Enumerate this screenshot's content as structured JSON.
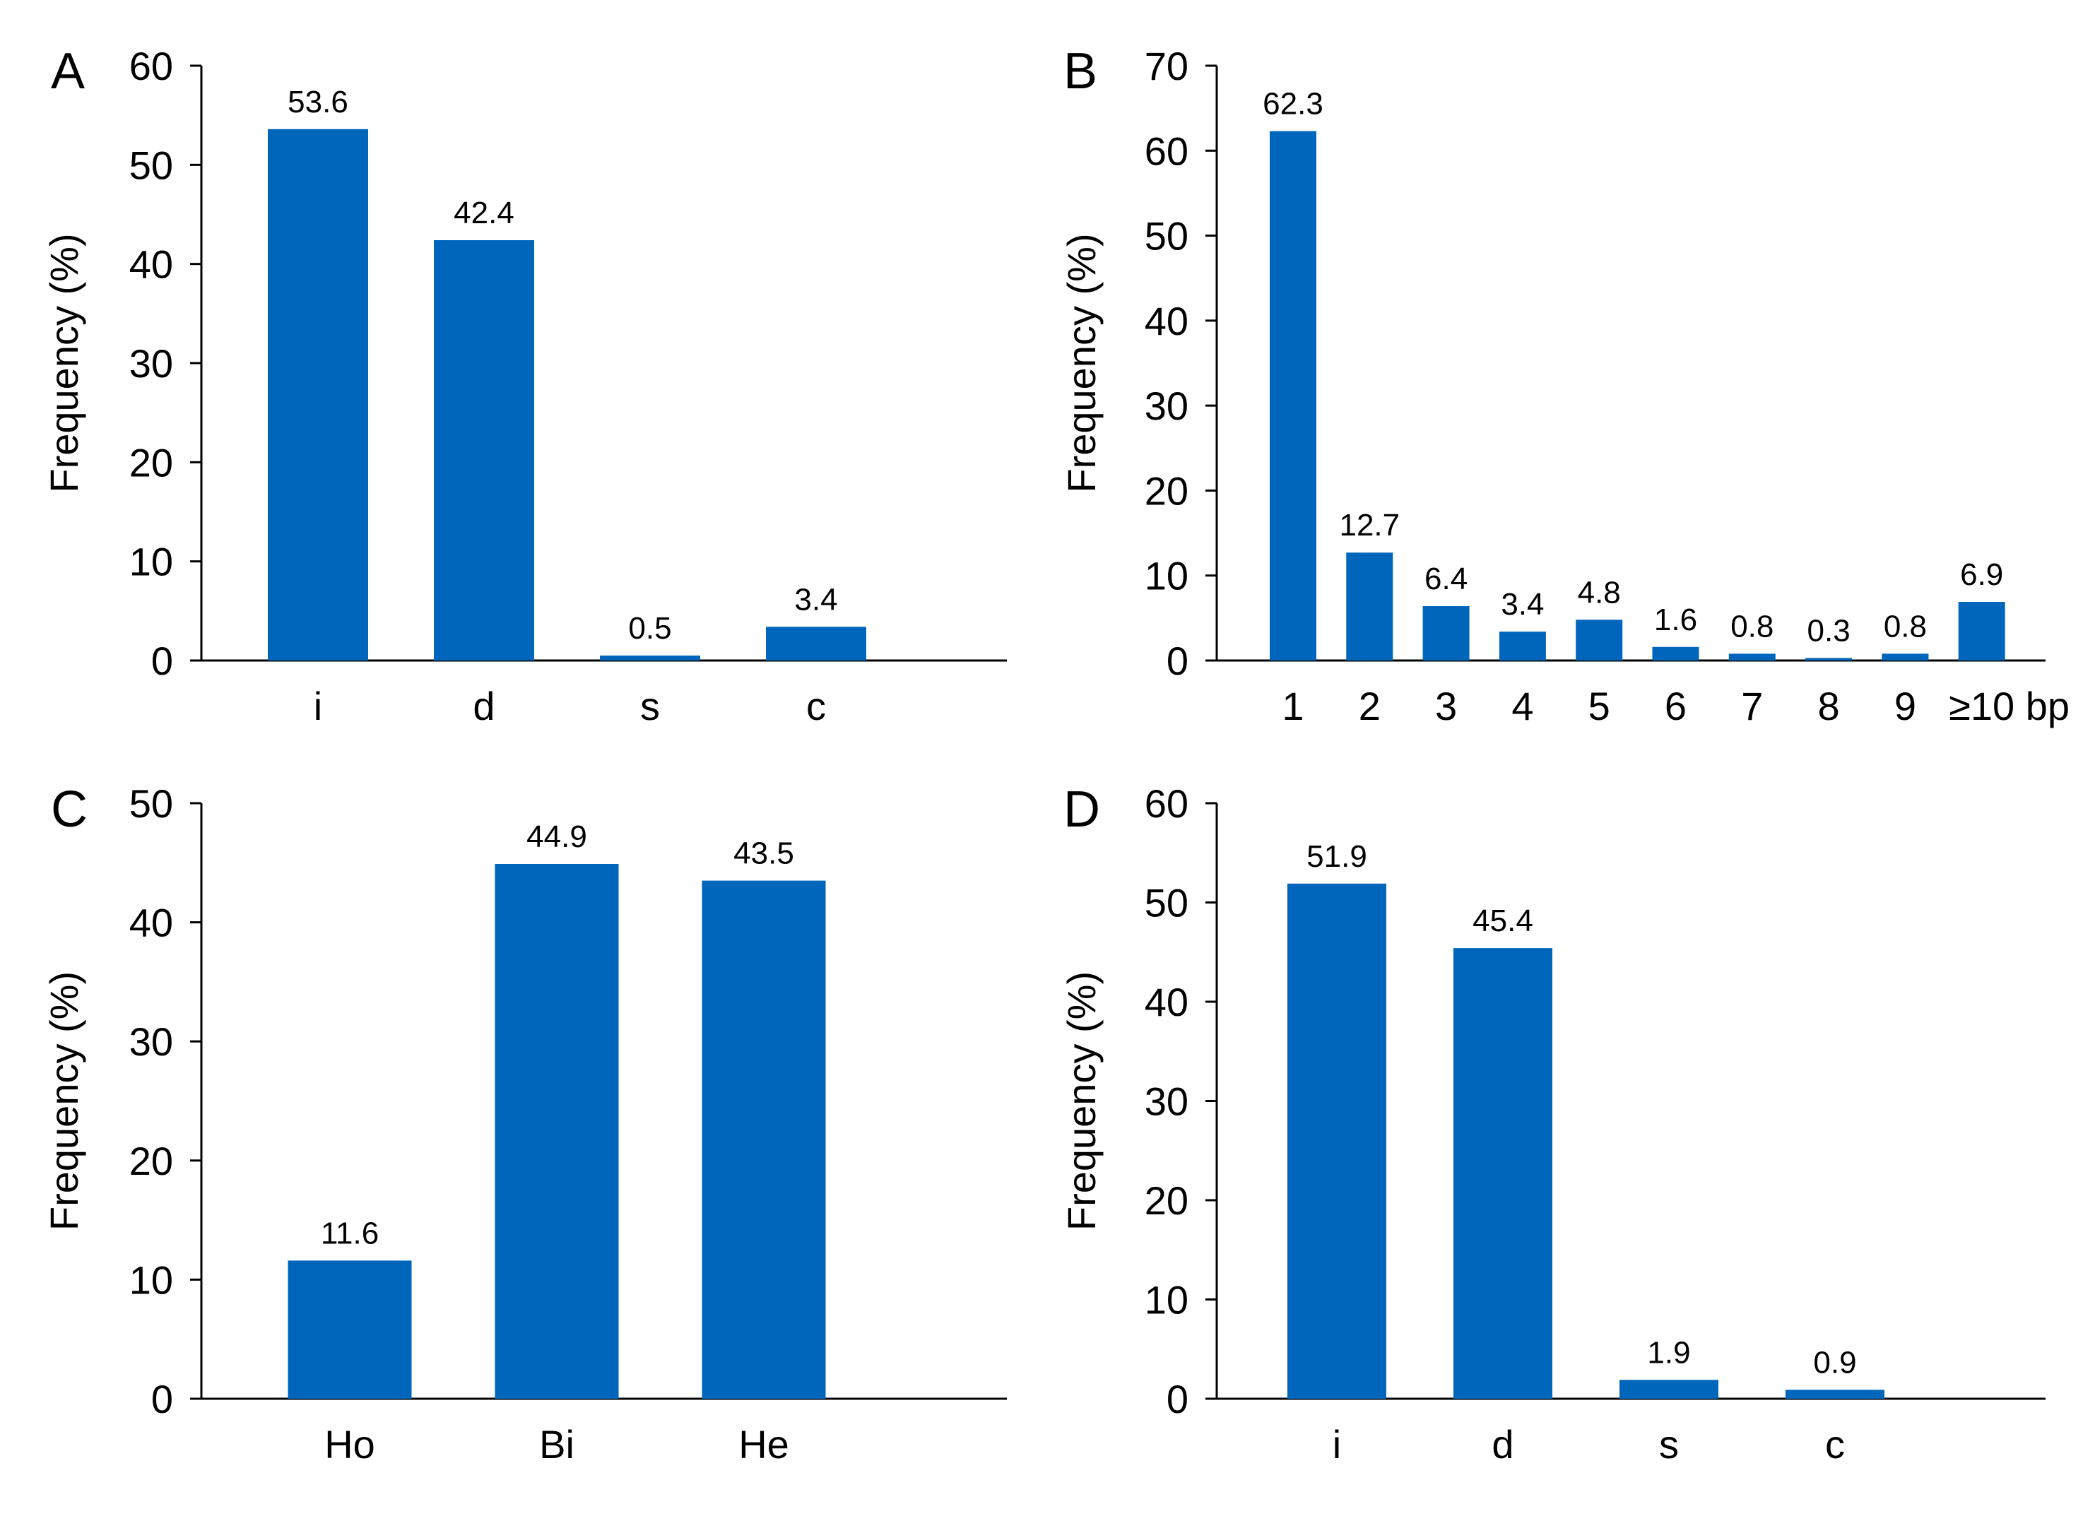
{
  "chart_data": [
    {
      "panel": "A",
      "type": "bar",
      "categories": [
        "i",
        "d",
        "s",
        "c"
      ],
      "values": [
        53.6,
        42.4,
        0.5,
        3.4
      ],
      "value_labels": [
        "53.6",
        "42.4",
        "0.5",
        "3.4"
      ],
      "ylabel": "Frequency (%)",
      "xlabel": "",
      "ylim": [
        0,
        60
      ],
      "yticks": [
        0,
        10,
        20,
        30,
        40,
        50,
        60
      ],
      "bar_color": "#0066bb"
    },
    {
      "panel": "B",
      "type": "bar",
      "categories": [
        "1",
        "2",
        "3",
        "4",
        "5",
        "6",
        "7",
        "8",
        "9",
        "≥10"
      ],
      "values": [
        62.3,
        12.7,
        6.4,
        3.4,
        4.8,
        1.6,
        0.8,
        0.3,
        0.8,
        6.9
      ],
      "value_labels": [
        "62.3",
        "12.7",
        "6.4",
        "3.4",
        "4.8",
        "1.6",
        "0.8",
        "0.3",
        "0.8",
        "6.9"
      ],
      "ylabel": "Frequency (%)",
      "xlabel": "",
      "x_unit": "bp",
      "ylim": [
        0,
        70
      ],
      "yticks": [
        0,
        10,
        20,
        30,
        40,
        50,
        60,
        70
      ],
      "bar_color": "#0066bb"
    },
    {
      "panel": "C",
      "type": "bar",
      "categories": [
        "Ho",
        "Bi",
        "He"
      ],
      "values": [
        11.6,
        44.9,
        43.5
      ],
      "value_labels": [
        "11.6",
        "44.9",
        "43.5"
      ],
      "ylabel": "Frequency (%)",
      "xlabel": "",
      "ylim": [
        0,
        50
      ],
      "yticks": [
        0,
        10,
        20,
        30,
        40,
        50
      ],
      "bar_color": "#0066bb"
    },
    {
      "panel": "D",
      "type": "bar",
      "categories": [
        "i",
        "d",
        "s",
        "c"
      ],
      "values": [
        51.9,
        45.4,
        1.9,
        0.9
      ],
      "value_labels": [
        "51.9",
        "45.4",
        "1.9",
        "0.9"
      ],
      "ylabel": "Frequency (%)",
      "xlabel": "",
      "ylim": [
        0,
        60
      ],
      "yticks": [
        0,
        10,
        20,
        30,
        40,
        50,
        60
      ],
      "bar_color": "#0066bb"
    }
  ]
}
